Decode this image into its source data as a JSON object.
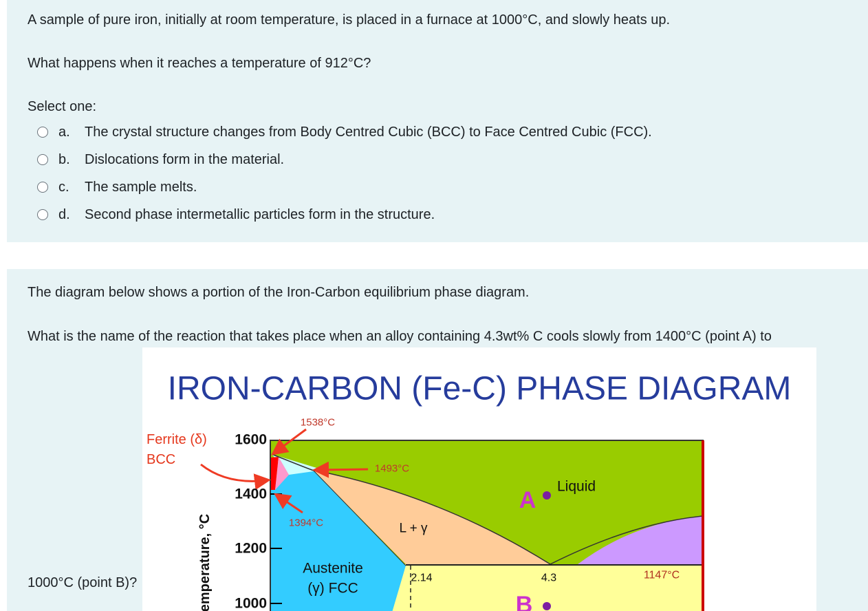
{
  "questions": [
    {
      "text": [
        "A sample of pure iron, initially at room temperature, is placed in a furnace at 1000°C, and slowly heats up.",
        "What happens when it reaches a temperature of 912°C?"
      ],
      "prompt": "Select one:",
      "options": [
        {
          "letter": "a.",
          "text": "The crystal structure changes from Body Centred Cubic (BCC) to Face Centred Cubic (FCC)."
        },
        {
          "letter": "b.",
          "text": "Dislocations form in the material."
        },
        {
          "letter": "c.",
          "text": "The sample melts."
        },
        {
          "letter": "d.",
          "text": "Second phase intermetallic particles form in the structure."
        }
      ]
    },
    {
      "text": [
        "The diagram below shows a portion of the Iron-Carbon equilibrium phase diagram.",
        "What is the name of the reaction that takes place when an alloy containing 4.3wt% C cools slowly from 1400°C (point A) to"
      ],
      "continuation": "1000°C (point B)?",
      "figure": {
        "title": "IRON-CARBON (Fe-C) PHASE DIAGRAM",
        "y_axis_label": "Temperature, °C",
        "y_labels": [
          "1600",
          "1400",
          "1200",
          "1000"
        ],
        "ferrite": "Ferrite (δ)",
        "bcc": "BCC",
        "t_melt": "1538°C",
        "t_peritectic": "1493°C",
        "t_delta": "1394°C",
        "t_eutectic": "1147°C",
        "liquid": "Liquid",
        "l_gamma": "L + γ",
        "austenite": "Austenite",
        "fcc": "(γ) FCC",
        "c_max": "2.14",
        "c_eutectic": "4.3",
        "point_a": "A",
        "point_b": "B"
      }
    }
  ]
}
